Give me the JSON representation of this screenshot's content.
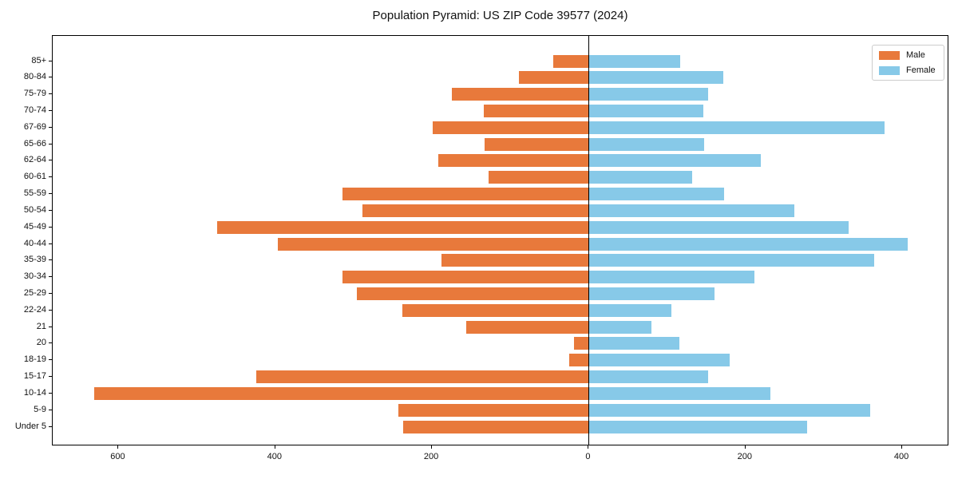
{
  "title": "Population Pyramid: US ZIP Code 39577 (2024)",
  "legend": {
    "male_label": "Male",
    "female_label": "Female",
    "position": "upper right"
  },
  "colors": {
    "male": "#e8793b",
    "female": "#87c9e8",
    "axis": "#000000",
    "background": "#ffffff"
  },
  "chart_data": {
    "type": "bar",
    "subtype": "population-pyramid",
    "orientation": "horizontal",
    "title": "Population Pyramid: US ZIP Code 39577 (2024)",
    "categories": [
      "85+",
      "80-84",
      "75-79",
      "70-74",
      "67-69",
      "65-66",
      "62-64",
      "60-61",
      "55-59",
      "50-54",
      "45-49",
      "40-44",
      "35-39",
      "30-34",
      "25-29",
      "22-24",
      "21",
      "20",
      "18-19",
      "15-17",
      "10-14",
      "5-9",
      "Under 5"
    ],
    "series": [
      {
        "name": "Male",
        "side": "left",
        "values": [
          45,
          89,
          175,
          134,
          199,
          133,
          192,
          128,
          314,
          289,
          474,
          397,
          188,
          314,
          296,
          238,
          156,
          19,
          25,
          424,
          631,
          243,
          237
        ]
      },
      {
        "name": "Female",
        "side": "right",
        "values": [
          117,
          172,
          152,
          146,
          377,
          147,
          220,
          132,
          173,
          262,
          332,
          407,
          364,
          211,
          161,
          105,
          80,
          116,
          180,
          152,
          232,
          359,
          279
        ]
      }
    ],
    "x_ticks": [
      -600,
      -400,
      -200,
      0,
      200,
      400
    ],
    "x_tick_labels": [
      "600",
      "400",
      "200",
      "0",
      "200",
      "400"
    ],
    "xlim": [
      -684,
      460
    ],
    "grid": false,
    "legend_entries": [
      "Male",
      "Female"
    ]
  }
}
